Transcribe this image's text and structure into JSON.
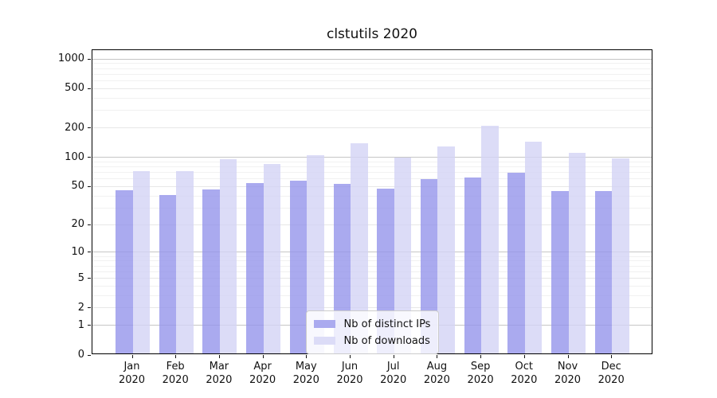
{
  "chart_data": {
    "type": "bar",
    "title": "clstutils 2020",
    "categories": [
      "Jan 2020",
      "Feb 2020",
      "Mar 2020",
      "Apr 2020",
      "May 2020",
      "Jun 2020",
      "Jul 2020",
      "Aug 2020",
      "Sep 2020",
      "Oct 2020",
      "Nov 2020",
      "Dec 2020"
    ],
    "series": [
      {
        "name": "Nb of distinct IPs",
        "color": "#aaaaef",
        "values": [
          46,
          41,
          47,
          54,
          58,
          53,
          48,
          60,
          62,
          70,
          45,
          45
        ]
      },
      {
        "name": "Nb of downloads",
        "color": "#dcdcf7",
        "values": [
          72,
          72,
          96,
          85,
          105,
          140,
          100,
          130,
          210,
          143,
          111,
          97
        ]
      }
    ],
    "yscale": "log1p",
    "ylim": [
      0,
      1230
    ],
    "yticks": [
      0,
      1,
      2,
      5,
      10,
      20,
      50,
      100,
      200,
      500,
      1000
    ],
    "grid": true,
    "grid_major_color": "#c6c6c6",
    "grid_mid_color": "#e7e7e7",
    "grid_minor_color": "#f1f1f1",
    "legend_position": "lower center"
  }
}
